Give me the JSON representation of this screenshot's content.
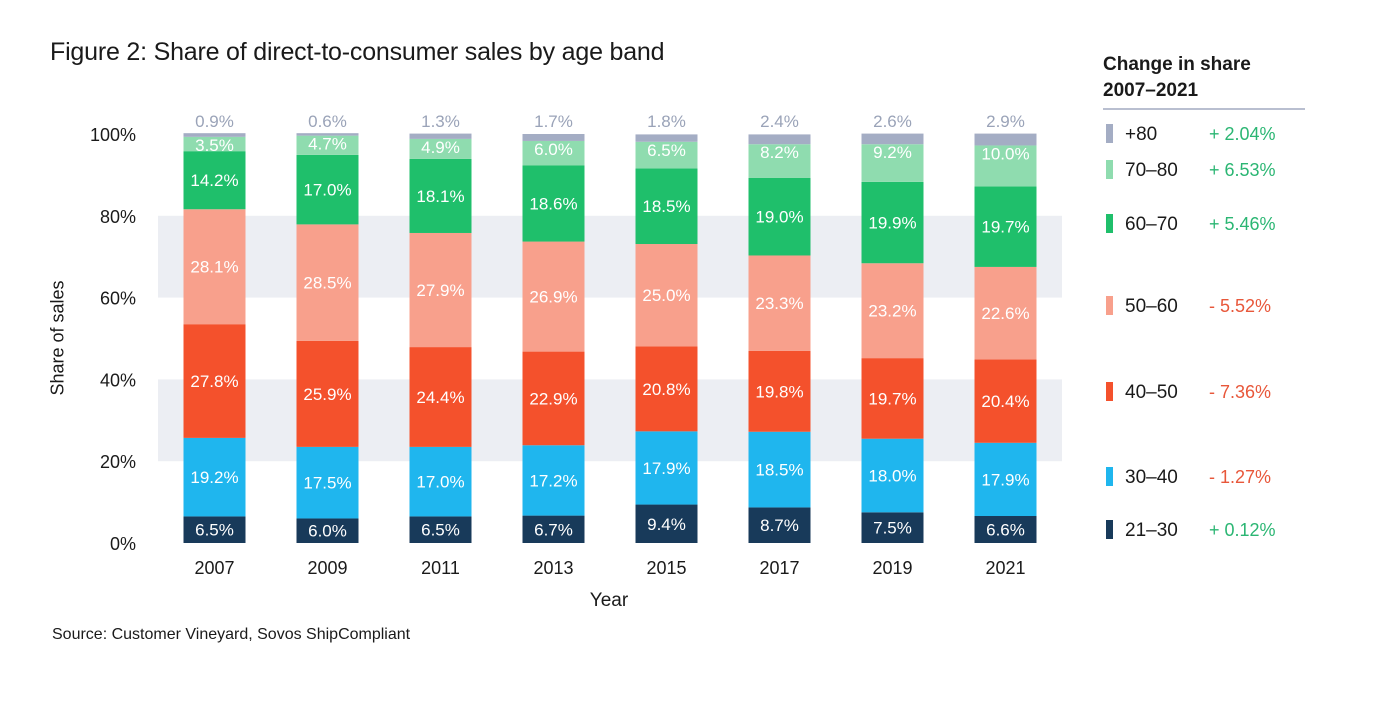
{
  "title": "Figure 2: Share of direct-to-consumer sales by age band",
  "source": "Source: Customer Vineyard, Sovos ShipCompliant",
  "legend_title_line1": "Change in share",
  "legend_title_line2": "2007–2021",
  "chart_data": {
    "type": "bar",
    "stacked": true,
    "xlabel": "Year",
    "ylabel": "Share of sales",
    "ylim": [
      0,
      100
    ],
    "y_ticks": [
      "0%",
      "20%",
      "40%",
      "60%",
      "80%",
      "100%"
    ],
    "categories": [
      "2007",
      "2009",
      "2011",
      "2013",
      "2015",
      "2017",
      "2019",
      "2021"
    ],
    "series": [
      {
        "name": "21–30",
        "color": "#183a5a",
        "label_color": "#ffffff",
        "change": "+ 0.12%",
        "change_color": "#2bb673",
        "values": [
          6.5,
          6.0,
          6.5,
          6.7,
          9.4,
          8.7,
          7.5,
          6.6
        ],
        "labels": [
          "6.5%",
          "6.0%",
          "6.5%",
          "6.7%",
          "9.4%",
          "8.7%",
          "7.5%",
          "6.6%"
        ]
      },
      {
        "name": "30–40",
        "color": "#1fb6ee",
        "label_color": "#ffffff",
        "change": "- 1.27%",
        "change_color": "#e8573a",
        "values": [
          19.2,
          17.5,
          17.0,
          17.2,
          17.9,
          18.5,
          18.0,
          17.9
        ],
        "labels": [
          "19.2%",
          "17.5%",
          "17.0%",
          "17.2%",
          "17.9%",
          "18.5%",
          "18.0%",
          "17.9%"
        ]
      },
      {
        "name": "40–50",
        "color": "#f4512c",
        "label_color": "#ffffff",
        "change": "- 7.36%",
        "change_color": "#e8573a",
        "values": [
          27.8,
          25.9,
          24.4,
          22.9,
          20.8,
          19.8,
          19.7,
          20.4
        ],
        "labels": [
          "27.8%",
          "25.9%",
          "24.4%",
          "22.9%",
          "20.8%",
          "19.8%",
          "19.7%",
          "20.4%"
        ]
      },
      {
        "name": "50–60",
        "color": "#f8a08c",
        "label_color": "#ffffff",
        "change": "- 5.52%",
        "change_color": "#e8573a",
        "values": [
          28.1,
          28.5,
          27.9,
          26.9,
          25.0,
          23.3,
          23.2,
          22.6
        ],
        "labels": [
          "28.1%",
          "28.5%",
          "27.9%",
          "26.9%",
          "25.0%",
          "23.3%",
          "23.2%",
          "22.6%"
        ]
      },
      {
        "name": "60–70",
        "color": "#1fbf6b",
        "label_color": "#ffffff",
        "change": "+ 5.46%",
        "change_color": "#2bb673",
        "values": [
          14.2,
          17.0,
          18.1,
          18.6,
          18.5,
          19.0,
          19.9,
          19.7
        ],
        "labels": [
          "14.2%",
          "17.0%",
          "18.1%",
          "18.6%",
          "18.5%",
          "19.0%",
          "19.9%",
          "19.7%"
        ]
      },
      {
        "name": "70–80",
        "color": "#8fdcaf",
        "label_color": "#ffffff",
        "change": "+ 6.53%",
        "change_color": "#2bb673",
        "values": [
          3.5,
          4.7,
          4.9,
          6.0,
          6.5,
          8.2,
          9.2,
          10.0
        ],
        "labels": [
          "3.5%",
          "4.7%",
          "4.9%",
          "6.0%",
          "6.5%",
          "8.2%",
          "9.2%",
          "10.0%"
        ]
      },
      {
        "name": "+80",
        "color": "#a4adc4",
        "label_color": "#9aa3b8",
        "change": "+ 2.04%",
        "change_color": "#2bb673",
        "values": [
          0.9,
          0.6,
          1.3,
          1.7,
          1.8,
          2.4,
          2.6,
          2.9
        ],
        "labels": [
          "0.9%",
          "0.6%",
          "1.3%",
          "1.7%",
          "1.8%",
          "2.4%",
          "2.6%",
          "2.9%"
        ]
      }
    ],
    "band_color": "#eceef3",
    "legend_position": "right"
  }
}
